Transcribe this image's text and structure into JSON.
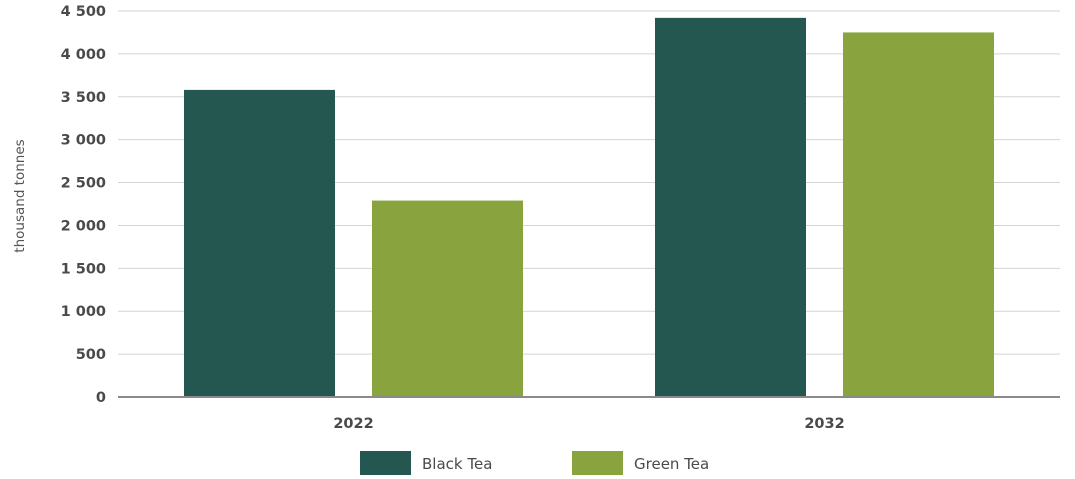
{
  "chart_data": {
    "type": "bar",
    "title": "",
    "xlabel": "",
    "ylabel": "thousand tonnes",
    "categories": [
      "2022",
      "2032"
    ],
    "series": [
      {
        "name": "Black Tea",
        "values": [
          3580,
          4420
        ],
        "color": "#235750"
      },
      {
        "name": "Green Tea",
        "values": [
          2290,
          4250
        ],
        "color": "#89a33f"
      }
    ],
    "ylim": [
      0,
      4500
    ],
    "yticks": [
      0,
      500,
      1000,
      1500,
      2000,
      2500,
      3000,
      3500,
      4000,
      4500
    ],
    "ytick_labels": [
      "0",
      "500",
      "1 000",
      "1 500",
      "2 000",
      "2 500",
      "3 000",
      "3 500",
      "4 000",
      "4 500"
    ],
    "grid": true,
    "legend_position": "bottom-center"
  }
}
